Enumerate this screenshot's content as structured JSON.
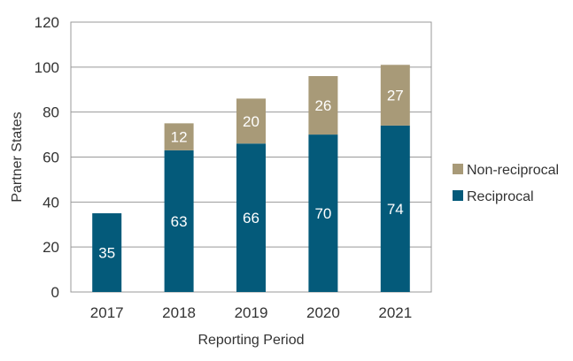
{
  "chart_data": {
    "type": "bar",
    "stacked": true,
    "title": "",
    "xlabel": "Reporting Period",
    "ylabel": "Partner States",
    "categories": [
      "2017",
      "2018",
      "2019",
      "2020",
      "2021"
    ],
    "ylim": [
      0,
      120
    ],
    "yticks": [
      0,
      20,
      40,
      60,
      80,
      100,
      120
    ],
    "grid": true,
    "legend_position": "right",
    "series": [
      {
        "name": "Reciprocal",
        "color": "#045a7a",
        "values": [
          35,
          63,
          66,
          70,
          74
        ]
      },
      {
        "name": "Non-reciprocal",
        "color": "#a89a78",
        "values": [
          0,
          12,
          20,
          26,
          27
        ]
      }
    ]
  }
}
